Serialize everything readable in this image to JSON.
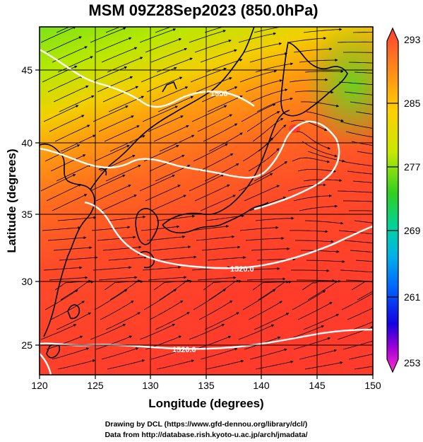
{
  "title": "MSM 09Z28Sep2023 (850.0hPa)",
  "xlabel": "Longitude (degrees)",
  "ylabel": "Latitude (degrees)",
  "x_ticks": [
    "120",
    "125",
    "130",
    "135",
    "140",
    "145",
    "150"
  ],
  "y_ticks": [
    "25",
    "30",
    "35",
    "40",
    "45"
  ],
  "colorbar": {
    "ticks": [
      "293",
      "285",
      "277",
      "269",
      "261",
      "253"
    ],
    "colors": [
      "#ff3c28",
      "#ff7a1e",
      "#ffb400",
      "#f0e400",
      "#9be600",
      "#2cd400",
      "#00d2b4",
      "#009bff",
      "#0034ff",
      "#2800c8",
      "#b400d2",
      "#ff3cd2"
    ]
  },
  "contour_labels": [
    "1500",
    "1520.0",
    "1520.0"
  ],
  "credits": {
    "line1": "Drawing by DCL (https://www.gfd-dennou.org/library/dcl/)",
    "line2": "Data from http://database.rish.kyoto-u.ac.jp/arch/jmadata/"
  },
  "map": {
    "lon_range": [
      120,
      150
    ],
    "lat_range": [
      22.5,
      47.5
    ],
    "field": "temperature (K) with streamlines and geopotential height contours",
    "field_range": [
      253,
      293
    ]
  }
}
